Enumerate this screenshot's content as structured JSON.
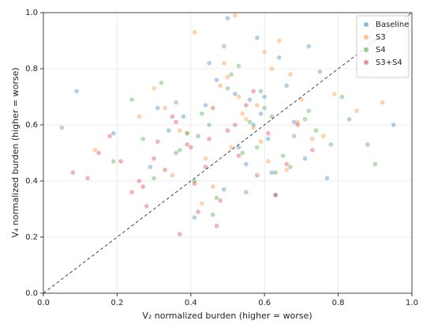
{
  "chart_data": {
    "type": "scatter",
    "xlabel": "V₂ normalized burden (higher = worse)",
    "ylabel": "V₄ normalized burden (higher = worse)",
    "xlim": [
      0,
      1
    ],
    "ylim": [
      0,
      1
    ],
    "xticks": [
      {
        "value": 0,
        "label": "0.0"
      },
      0.2,
      0.4,
      0.6,
      0.8,
      {
        "value": 1,
        "label": "1.0"
      }
    ],
    "yticks": [
      {
        "value": 0,
        "label": "0.0"
      },
      0.2,
      0.4,
      0.6,
      0.8,
      {
        "value": 1,
        "label": "1.0"
      }
    ],
    "grid": true,
    "legend": "upper right",
    "series": [
      {
        "name": "Baseline",
        "color": "#1f77b4",
        "x": [
          0.52,
          0.61,
          0.38,
          0.71,
          0.45,
          0.57,
          0.29,
          0.66,
          0.49,
          0.83,
          0.34,
          0.58,
          0.62,
          0.44,
          0.75,
          0.53,
          0.19,
          0.68,
          0.41,
          0.56,
          0.88,
          0.47,
          0.63,
          0.31,
          0.72,
          0.55,
          0.09,
          0.59,
          0.5,
          0.77,
          0.36,
          0.64,
          0.95,
          0.42,
          0.6
        ],
        "values": [
          0.71,
          0.55,
          0.63,
          0.48,
          0.82,
          0.6,
          0.45,
          0.74,
          0.37,
          0.62,
          0.58,
          0.91,
          0.43,
          0.67,
          0.79,
          0.52,
          0.57,
          0.61,
          0.27,
          0.69,
          0.53,
          0.76,
          0.35,
          0.66,
          0.88,
          0.46,
          0.72,
          0.64,
          0.98,
          0.41,
          0.5,
          0.84,
          0.6,
          0.56,
          0.7
        ]
      },
      {
        "name": "S3",
        "color": "#ff7f0e",
        "x": [
          0.48,
          0.55,
          0.62,
          0.39,
          0.7,
          0.51,
          0.33,
          0.6,
          0.44,
          0.79,
          0.57,
          0.26,
          0.66,
          0.5,
          0.41,
          0.73,
          0.58,
          0.14,
          0.64,
          0.46,
          0.85,
          0.53,
          0.37,
          0.69,
          0.49,
          0.61,
          0.3,
          0.76,
          0.54,
          0.43,
          0.67,
          0.92,
          0.52,
          0.59,
          0.35
        ],
        "values": [
          0.74,
          0.62,
          0.8,
          0.57,
          0.69,
          0.52,
          0.66,
          0.86,
          0.48,
          0.71,
          0.59,
          0.63,
          0.44,
          0.77,
          0.93,
          0.55,
          0.67,
          0.51,
          0.9,
          0.38,
          0.65,
          0.7,
          0.58,
          0.61,
          0.82,
          0.47,
          0.73,
          0.56,
          0.64,
          0.32,
          0.78,
          0.68,
          0.99,
          0.54,
          0.42
        ]
      },
      {
        "name": "S4",
        "color": "#2ca02c",
        "x": [
          0.45,
          0.58,
          0.36,
          0.67,
          0.5,
          0.27,
          0.62,
          0.41,
          0.74,
          0.53,
          0.19,
          0.6,
          0.47,
          0.81,
          0.39,
          0.56,
          0.65,
          0.32,
          0.71,
          0.49,
          0.05,
          0.63,
          0.43,
          0.78,
          0.55,
          0.24,
          0.68,
          0.51,
          0.9,
          0.37,
          0.59,
          0.46,
          0.72,
          0.54,
          0.3
        ],
        "values": [
          0.6,
          0.52,
          0.68,
          0.45,
          0.73,
          0.55,
          0.63,
          0.4,
          0.58,
          0.81,
          0.47,
          0.66,
          0.34,
          0.7,
          0.57,
          0.61,
          0.49,
          0.75,
          0.62,
          0.88,
          0.59,
          0.43,
          0.64,
          0.53,
          0.36,
          0.69,
          0.56,
          0.78,
          0.46,
          0.51,
          0.72,
          0.28,
          0.65,
          0.5,
          0.41
        ]
      },
      {
        "name": "S3+S4",
        "color": "#d62728",
        "x": [
          0.4,
          0.33,
          0.52,
          0.27,
          0.45,
          0.21,
          0.58,
          0.36,
          0.48,
          0.15,
          0.42,
          0.61,
          0.3,
          0.55,
          0.24,
          0.39,
          0.66,
          0.47,
          0.12,
          0.5,
          0.35,
          0.73,
          0.28,
          0.44,
          0.57,
          0.18,
          0.41,
          0.63,
          0.31,
          0.53,
          0.08,
          0.46,
          0.37,
          0.69,
          0.26
        ],
        "values": [
          0.52,
          0.44,
          0.6,
          0.38,
          0.55,
          0.47,
          0.42,
          0.61,
          0.33,
          0.5,
          0.29,
          0.57,
          0.48,
          0.67,
          0.36,
          0.53,
          0.46,
          0.24,
          0.41,
          0.58,
          0.63,
          0.51,
          0.31,
          0.45,
          0.72,
          0.56,
          0.39,
          0.35,
          0.54,
          0.49,
          0.43,
          0.66,
          0.21,
          0.6,
          0.4
        ]
      }
    ]
  }
}
